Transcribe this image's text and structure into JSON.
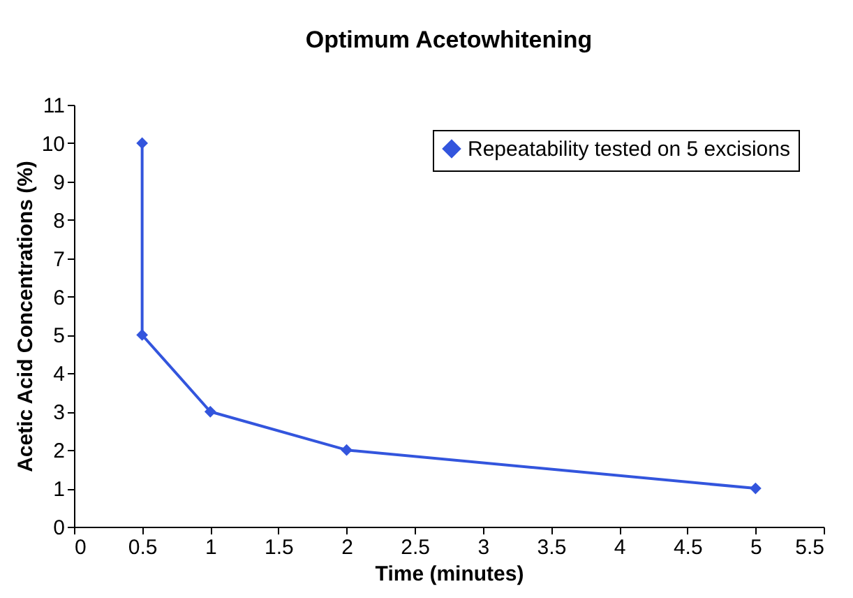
{
  "chart_data": {
    "type": "line",
    "title": "Optimum Acetowhitening",
    "xlabel": "Time (minutes)",
    "ylabel": "Acetic Acid Concentrations (%)",
    "x": [
      0.5,
      0.5,
      1,
      2,
      5
    ],
    "series": [
      {
        "name": "Repeatability tested on 5 excisions",
        "color": "#3355dd",
        "values": [
          10,
          5,
          3,
          2,
          1
        ]
      }
    ],
    "xlim": [
      0,
      5.5
    ],
    "xticks": [
      0,
      0.5,
      1,
      1.5,
      2,
      2.5,
      3,
      3.5,
      4,
      4.5,
      5,
      5.5
    ],
    "ylim": [
      0,
      11
    ],
    "yticks": [
      0,
      1,
      2,
      3,
      4,
      5,
      6,
      7,
      8,
      9,
      10,
      11
    ],
    "grid": false,
    "legend": "top right",
    "marker": "diamond",
    "line_style": "solid"
  }
}
